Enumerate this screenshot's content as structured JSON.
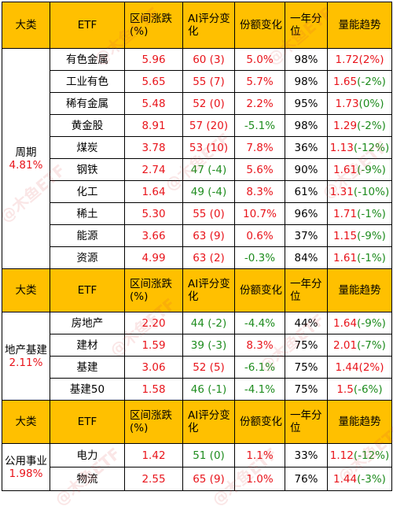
{
  "headers": {
    "category": "大类",
    "etf": "ETF",
    "change": "区间涨跌(%)",
    "ai_score": "AI评分变化",
    "share_change": "份额变化",
    "percentile": "一年分位",
    "volume_trend": "量能趋势"
  },
  "sections": [
    {
      "name": "周期",
      "pct": "4.81%",
      "rows": [
        {
          "etf": "有色金属",
          "change": "5.96",
          "score": "60",
          "delta": "(3)",
          "delta_color": "red",
          "share": "5.0%",
          "share_color": "red",
          "pctl": "98%",
          "vol": "1.72",
          "vol_delta": "(2%)",
          "vol_color": "red",
          "vol_delta_color": "red"
        },
        {
          "etf": "工业有色",
          "change": "5.65",
          "score": "55",
          "delta": "(7)",
          "delta_color": "red",
          "share": "5.7%",
          "share_color": "red",
          "pctl": "98%",
          "vol": "1.65",
          "vol_delta": "(-2%)",
          "vol_color": "red",
          "vol_delta_color": "green"
        },
        {
          "etf": "稀有金属",
          "change": "5.48",
          "score": "52",
          "delta": "(0)",
          "delta_color": "red",
          "share": "2.2%",
          "share_color": "red",
          "pctl": "95%",
          "vol": "1.73",
          "vol_delta": "(0%)",
          "vol_color": "red",
          "vol_delta_color": "green"
        },
        {
          "etf": "黄金股",
          "change": "8.91",
          "score": "57",
          "delta": "(20)",
          "delta_color": "red",
          "share": "-5.1%",
          "share_color": "green",
          "pctl": "98%",
          "vol": "1.29",
          "vol_delta": "(-2%)",
          "vol_color": "red",
          "vol_delta_color": "green"
        },
        {
          "etf": "煤炭",
          "change": "3.78",
          "score": "53",
          "delta": "(10)",
          "delta_color": "red",
          "share": "7.8%",
          "share_color": "red",
          "pctl": "36%",
          "vol": "1.13",
          "vol_delta": "(-12%)",
          "vol_color": "red",
          "vol_delta_color": "green"
        },
        {
          "etf": "钢铁",
          "change": "2.74",
          "score": "47",
          "delta": "(-4)",
          "delta_color": "green",
          "share": "5.6%",
          "share_color": "red",
          "pctl": "90%",
          "vol": "1.61",
          "vol_delta": "(-9%)",
          "vol_color": "red",
          "vol_delta_color": "green"
        },
        {
          "etf": "化工",
          "change": "1.64",
          "score": "49",
          "delta": "(-4)",
          "delta_color": "green",
          "share": "8.3%",
          "share_color": "red",
          "pctl": "61%",
          "vol": "1.31",
          "vol_delta": "(-10%)",
          "vol_color": "red",
          "vol_delta_color": "green"
        },
        {
          "etf": "稀土",
          "change": "5.30",
          "score": "55",
          "delta": "(0)",
          "delta_color": "red",
          "share": "10.7%",
          "share_color": "red",
          "pctl": "96%",
          "vol": "1.71",
          "vol_delta": "(-1%)",
          "vol_color": "red",
          "vol_delta_color": "green"
        },
        {
          "etf": "能源",
          "change": "3.66",
          "score": "63",
          "delta": "(9)",
          "delta_color": "red",
          "share": "0.6%",
          "share_color": "red",
          "pctl": "37%",
          "vol": "1.15",
          "vol_delta": "(-9%)",
          "vol_color": "red",
          "vol_delta_color": "green"
        },
        {
          "etf": "资源",
          "change": "4.99",
          "score": "63",
          "delta": "(2)",
          "delta_color": "red",
          "share": "-0.3%",
          "share_color": "green",
          "pctl": "84%",
          "vol": "1.61",
          "vol_delta": "(-1%)",
          "vol_color": "red",
          "vol_delta_color": "green"
        }
      ]
    },
    {
      "name": "地产基建",
      "pct": "2.11%",
      "rows": [
        {
          "etf": "房地产",
          "change": "2.20",
          "score": "44",
          "delta": "(-2)",
          "delta_color": "green",
          "share": "-4.4%",
          "share_color": "green",
          "pctl": "44%",
          "vol": "1.64",
          "vol_delta": "(-9%)",
          "vol_color": "red",
          "vol_delta_color": "green"
        },
        {
          "etf": "建材",
          "change": "1.59",
          "score": "39",
          "delta": "(-3)",
          "delta_color": "green",
          "share": "8.3%",
          "share_color": "red",
          "pctl": "75%",
          "vol": "2.01",
          "vol_delta": "(-7%)",
          "vol_color": "red",
          "vol_delta_color": "green"
        },
        {
          "etf": "基建",
          "change": "3.06",
          "score": "52",
          "delta": "(5)",
          "delta_color": "red",
          "share": "-6.1%",
          "share_color": "green",
          "pctl": "75%",
          "vol": "1.44",
          "vol_delta": "(2%)",
          "vol_color": "red",
          "vol_delta_color": "red"
        },
        {
          "etf": "基建50",
          "change": "1.58",
          "score": "46",
          "delta": "(-1)",
          "delta_color": "green",
          "share": "-4.1%",
          "share_color": "green",
          "pctl": "75%",
          "vol": "1.5",
          "vol_delta": "(-6%)",
          "vol_color": "red",
          "vol_delta_color": "green"
        }
      ]
    },
    {
      "name": "公用事业",
      "pct": "1.98%",
      "rows": [
        {
          "etf": "电力",
          "change": "1.42",
          "score": "51",
          "delta": "(0)",
          "delta_color": "green",
          "share": "1.1%",
          "share_color": "red",
          "pctl": "33%",
          "vol": "1.12",
          "vol_delta": "(-12%)",
          "vol_color": "red",
          "vol_delta_color": "green"
        },
        {
          "etf": "物流",
          "change": "2.55",
          "score": "65",
          "delta": "(9)",
          "delta_color": "red",
          "share": "1.0%",
          "share_color": "red",
          "pctl": "76%",
          "vol": "1.44",
          "vol_delta": "(-3%)",
          "vol_color": "red",
          "vol_delta_color": "green"
        }
      ]
    }
  ],
  "watermark": "@木鱼ETF",
  "colors": {
    "header_bg": "#FFC000",
    "up": "#E8141B",
    "down": "#1E8C1E"
  }
}
